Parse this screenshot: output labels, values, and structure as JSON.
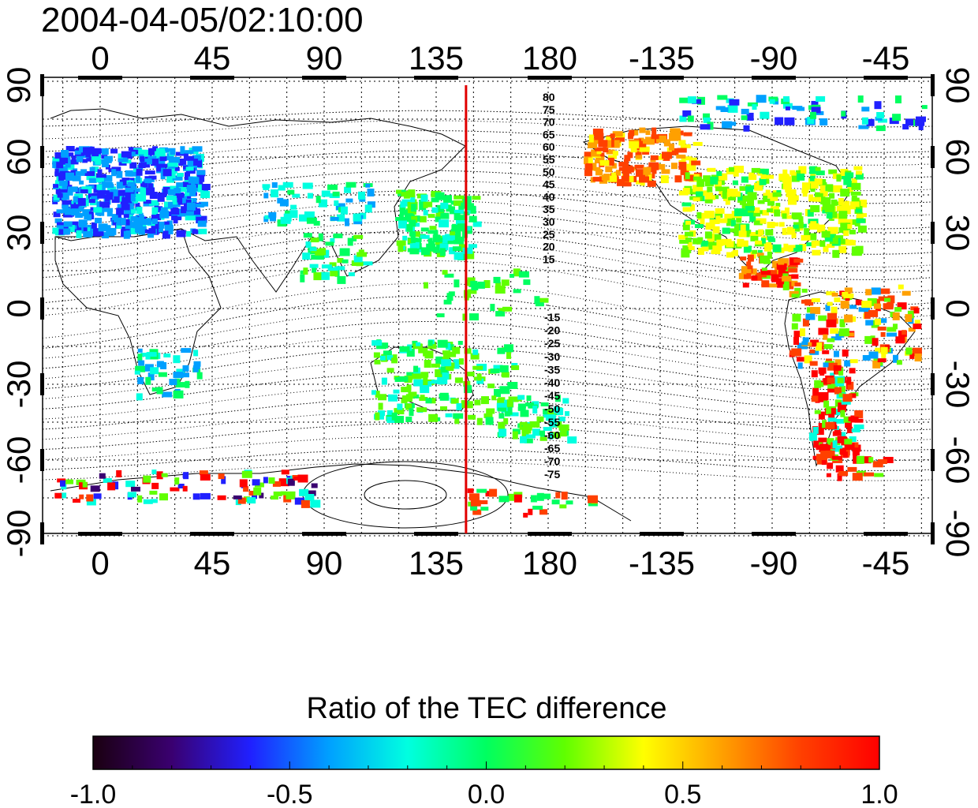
{
  "title": "2004-04-05/02:10:00",
  "map": {
    "lon_ticks": [
      "0",
      "45",
      "90",
      "135",
      "180",
      "-135",
      "-90",
      "-45"
    ],
    "lat_ticks": [
      "90",
      "60",
      "30",
      "0",
      "-30",
      "-60",
      "-90"
    ],
    "marker_longitude": 147,
    "marker_color": "#e00000",
    "geomag_labels_north": [
      "80",
      "75",
      "70",
      "65",
      "60",
      "55",
      "50",
      "45",
      "40",
      "35",
      "30",
      "25",
      "20",
      "15"
    ],
    "geomag_labels_south": [
      "-15",
      "-20",
      "-25",
      "-30",
      "-35",
      "-40",
      "-45",
      "-50",
      "-55",
      "-60",
      "-65",
      "-70",
      "-75"
    ]
  },
  "colorbar": {
    "title": "Ratio of the TEC difference",
    "tick_labels": [
      "-1.0",
      "-0.5",
      "0.0",
      "0.5",
      "1.0"
    ],
    "range": [
      -1.0,
      1.0
    ],
    "colors": [
      "#1a0010",
      "#3a0070",
      "#2020ff",
      "#00a0ff",
      "#00ffe0",
      "#00ff60",
      "#60ff00",
      "#ffff00",
      "#ffa000",
      "#ff4000",
      "#ff0000"
    ]
  }
}
